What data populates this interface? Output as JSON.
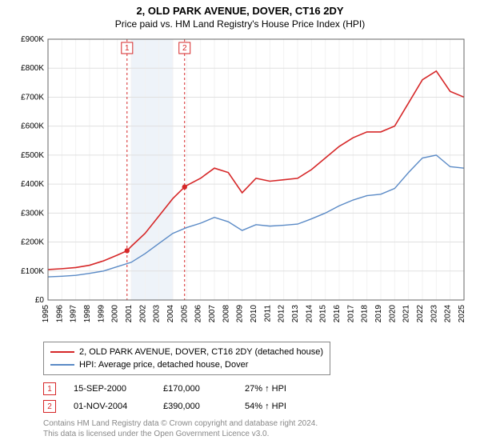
{
  "title": "2, OLD PARK AVENUE, DOVER, CT16 2DY",
  "subtitle": "Price paid vs. HM Land Registry's House Price Index (HPI)",
  "chart": {
    "type": "line",
    "background_color": "#ffffff",
    "plot_border_color": "#666666",
    "grid_color_major": "#e0e0e0",
    "grid_color_minor": "#f2f2f2",
    "shaded_band_color": "#eef3f9",
    "shaded_band_x": [
      2001,
      2004
    ],
    "x_axis": {
      "min": 1995,
      "max": 2025,
      "tick_step": 1,
      "label_rotation": -90,
      "label_fontsize": 10,
      "labels": [
        "1995",
        "1996",
        "1997",
        "1998",
        "1999",
        "2000",
        "2001",
        "2002",
        "2003",
        "2004",
        "2005",
        "2006",
        "2007",
        "2008",
        "2009",
        "2010",
        "2011",
        "2012",
        "2013",
        "2014",
        "2015",
        "2016",
        "2017",
        "2018",
        "2019",
        "2020",
        "2021",
        "2022",
        "2023",
        "2024",
        "2025"
      ]
    },
    "y_axis": {
      "min": 0,
      "max": 900000,
      "tick_step": 100000,
      "label_fontsize": 10,
      "labels": [
        "£0",
        "£100K",
        "£200K",
        "£300K",
        "£400K",
        "£500K",
        "£600K",
        "£700K",
        "£800K",
        "£900K"
      ]
    },
    "event_markers": [
      {
        "n": "1",
        "x": 2000.7,
        "y": 170000,
        "line_color": "#d62728",
        "line_dash": "3,3",
        "box_color": "#d62728",
        "label_y_top": true
      },
      {
        "n": "2",
        "x": 2004.85,
        "y": 390000,
        "line_color": "#d62728",
        "line_dash": "3,3",
        "box_color": "#d62728",
        "label_y_top": true
      }
    ],
    "series": [
      {
        "name": "2, OLD PARK AVENUE, DOVER, CT16 2DY (detached house)",
        "color": "#d62728",
        "line_width": 1.6,
        "points": [
          [
            1995,
            105000
          ],
          [
            1996,
            108000
          ],
          [
            1997,
            112000
          ],
          [
            1998,
            120000
          ],
          [
            1999,
            135000
          ],
          [
            2000,
            155000
          ],
          [
            2000.7,
            170000
          ],
          [
            2001,
            185000
          ],
          [
            2002,
            230000
          ],
          [
            2003,
            290000
          ],
          [
            2004,
            350000
          ],
          [
            2004.85,
            390000
          ],
          [
            2005,
            395000
          ],
          [
            2006,
            420000
          ],
          [
            2007,
            455000
          ],
          [
            2008,
            440000
          ],
          [
            2009,
            370000
          ],
          [
            2010,
            420000
          ],
          [
            2011,
            410000
          ],
          [
            2012,
            415000
          ],
          [
            2013,
            420000
          ],
          [
            2014,
            450000
          ],
          [
            2015,
            490000
          ],
          [
            2016,
            530000
          ],
          [
            2017,
            560000
          ],
          [
            2018,
            580000
          ],
          [
            2019,
            580000
          ],
          [
            2020,
            600000
          ],
          [
            2021,
            680000
          ],
          [
            2022,
            760000
          ],
          [
            2023,
            790000
          ],
          [
            2024,
            720000
          ],
          [
            2025,
            700000
          ]
        ]
      },
      {
        "name": "HPI: Average price, detached house, Dover",
        "color": "#5a8ac6",
        "line_width": 1.4,
        "points": [
          [
            1995,
            80000
          ],
          [
            1996,
            82000
          ],
          [
            1997,
            85000
          ],
          [
            1998,
            92000
          ],
          [
            1999,
            100000
          ],
          [
            2000,
            115000
          ],
          [
            2001,
            130000
          ],
          [
            2002,
            160000
          ],
          [
            2003,
            195000
          ],
          [
            2004,
            230000
          ],
          [
            2005,
            250000
          ],
          [
            2006,
            265000
          ],
          [
            2007,
            285000
          ],
          [
            2008,
            270000
          ],
          [
            2009,
            240000
          ],
          [
            2010,
            260000
          ],
          [
            2011,
            255000
          ],
          [
            2012,
            258000
          ],
          [
            2013,
            262000
          ],
          [
            2014,
            280000
          ],
          [
            2015,
            300000
          ],
          [
            2016,
            325000
          ],
          [
            2017,
            345000
          ],
          [
            2018,
            360000
          ],
          [
            2019,
            365000
          ],
          [
            2020,
            385000
          ],
          [
            2021,
            440000
          ],
          [
            2022,
            490000
          ],
          [
            2023,
            500000
          ],
          [
            2024,
            460000
          ],
          [
            2025,
            455000
          ]
        ]
      }
    ]
  },
  "legend": {
    "rows": [
      {
        "color": "#d62728",
        "label": "2, OLD PARK AVENUE, DOVER, CT16 2DY (detached house)"
      },
      {
        "color": "#5a8ac6",
        "label": "HPI: Average price, detached house, Dover"
      }
    ]
  },
  "events": [
    {
      "n": "1",
      "date": "15-SEP-2000",
      "price": "£170,000",
      "pct": "27% ↑ HPI"
    },
    {
      "n": "2",
      "date": "01-NOV-2004",
      "price": "£390,000",
      "pct": "54% ↑ HPI"
    }
  ],
  "footer": {
    "line1": "Contains HM Land Registry data © Crown copyright and database right 2024.",
    "line2": "This data is licensed under the Open Government Licence v3.0."
  }
}
